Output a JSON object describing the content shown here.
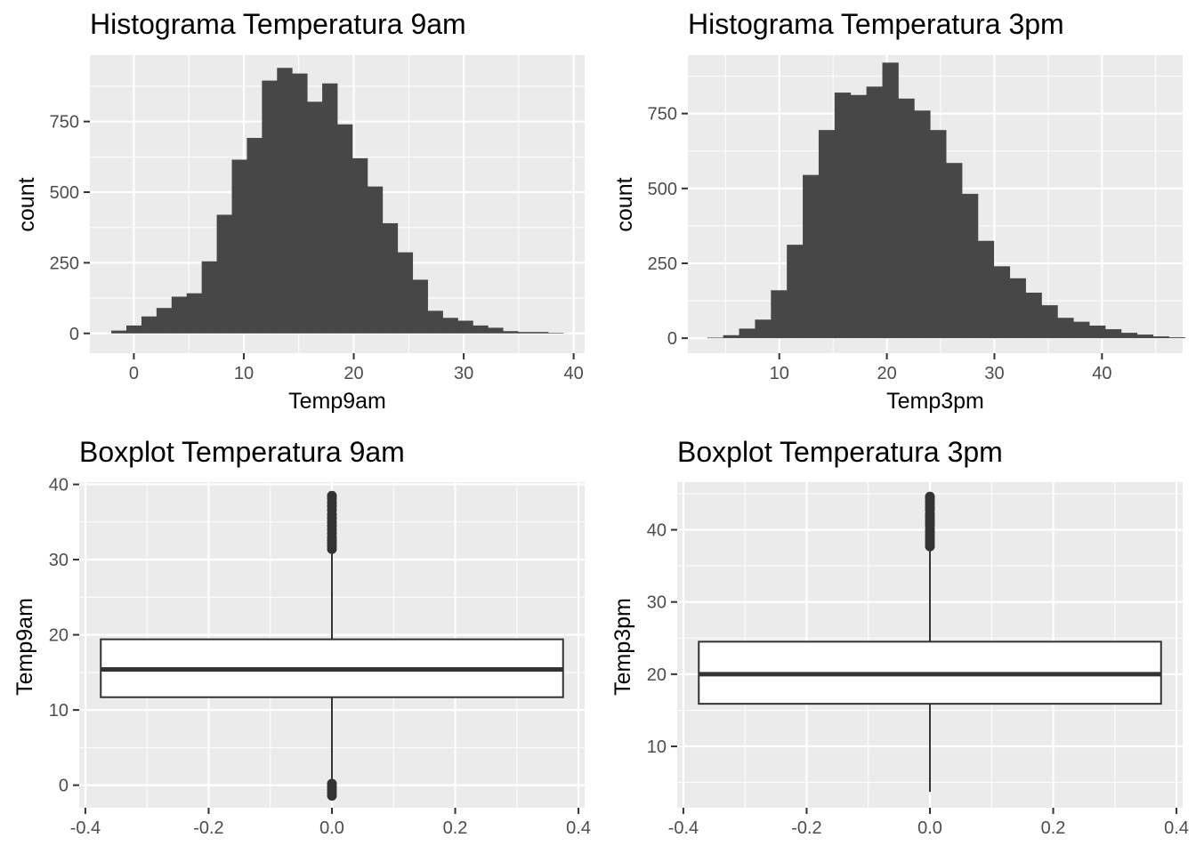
{
  "chart_data": [
    {
      "type": "histogram",
      "title": "Histograma Temperatura 9am",
      "xlabel": "Temp9am",
      "ylabel": "count",
      "xlim": [
        -4,
        41
      ],
      "ylim": [
        -70,
        985
      ],
      "x_ticks": [
        0,
        10,
        20,
        30,
        40
      ],
      "y_ticks": [
        0,
        250,
        500,
        750
      ],
      "grid": true,
      "bin_width": 1.37,
      "bin_start": -2.05,
      "counts": [
        10,
        28,
        60,
        90,
        130,
        142,
        255,
        420,
        615,
        692,
        895,
        940,
        920,
        820,
        885,
        740,
        620,
        520,
        390,
        287,
        190,
        80,
        55,
        45,
        28,
        20,
        8,
        5,
        5,
        2
      ]
    },
    {
      "type": "histogram",
      "title": "Histograma  Temperatura 3pm",
      "xlabel": "Temp3pm",
      "ylabel": "count",
      "xlim": [
        1.5,
        47.5
      ],
      "ylim": [
        -50,
        945
      ],
      "x_ticks": [
        10,
        20,
        30,
        40
      ],
      "y_ticks": [
        0,
        250,
        500,
        750
      ],
      "grid": true,
      "bin_width": 1.48,
      "bin_start": 3.3,
      "counts": [
        2,
        10,
        32,
        62,
        160,
        312,
        545,
        695,
        820,
        812,
        840,
        920,
        800,
        760,
        695,
        585,
        482,
        325,
        240,
        200,
        152,
        110,
        68,
        55,
        42,
        30,
        18,
        12,
        6,
        3
      ]
    },
    {
      "type": "boxplot",
      "title": "Boxplot Temperatura 9am",
      "xlabel": "",
      "ylabel": "Temp9am",
      "xlim": [
        -0.41,
        0.41
      ],
      "ylim": [
        -3.0,
        40.3
      ],
      "x_ticks": [
        -0.4,
        -0.2,
        0.0,
        0.2,
        0.4
      ],
      "x_tick_labels": [
        "-0.4",
        "-0.2",
        "0.0",
        "0.2",
        "0.4"
      ],
      "y_ticks": [
        0,
        10,
        20,
        30,
        40
      ],
      "grid": true,
      "x": 0,
      "box_halfwidth": 0.375,
      "q1": 11.7,
      "median": 15.4,
      "q3": 19.4,
      "whisker_low": 0.4,
      "whisker_high": 31.1,
      "outliers": [
        31.4,
        31.8,
        32.2,
        32.6,
        33.0,
        33.5,
        34.0,
        34.5,
        35.0,
        35.5,
        36.0,
        36.6,
        37.1,
        37.6,
        38.1,
        38.5,
        0.2,
        -0.2,
        -0.6,
        -1.0,
        -1.4
      ]
    },
    {
      "type": "boxplot",
      "title": "Boxplot Temperatura 3pm",
      "xlabel": "",
      "ylabel": "Temp3pm",
      "xlim": [
        -0.41,
        0.41
      ],
      "ylim": [
        1.5,
        46.6
      ],
      "x_ticks": [
        -0.4,
        -0.2,
        0.0,
        0.2,
        0.4
      ],
      "x_tick_labels": [
        "-0.4",
        "-0.2",
        "0.0",
        "0.2",
        "0.4"
      ],
      "y_ticks": [
        10,
        20,
        30,
        40
      ],
      "grid": true,
      "x": 0,
      "box_halfwidth": 0.375,
      "q1": 15.9,
      "median": 20.0,
      "q3": 24.5,
      "whisker_low": 3.7,
      "whisker_high": 37.4,
      "outliers": [
        37.7,
        38.1,
        38.5,
        38.9,
        39.3,
        39.7,
        40.1,
        40.6,
        41.0,
        41.4,
        41.8,
        42.2,
        42.7,
        43.1,
        43.5,
        43.9,
        44.3,
        44.6
      ]
    }
  ]
}
